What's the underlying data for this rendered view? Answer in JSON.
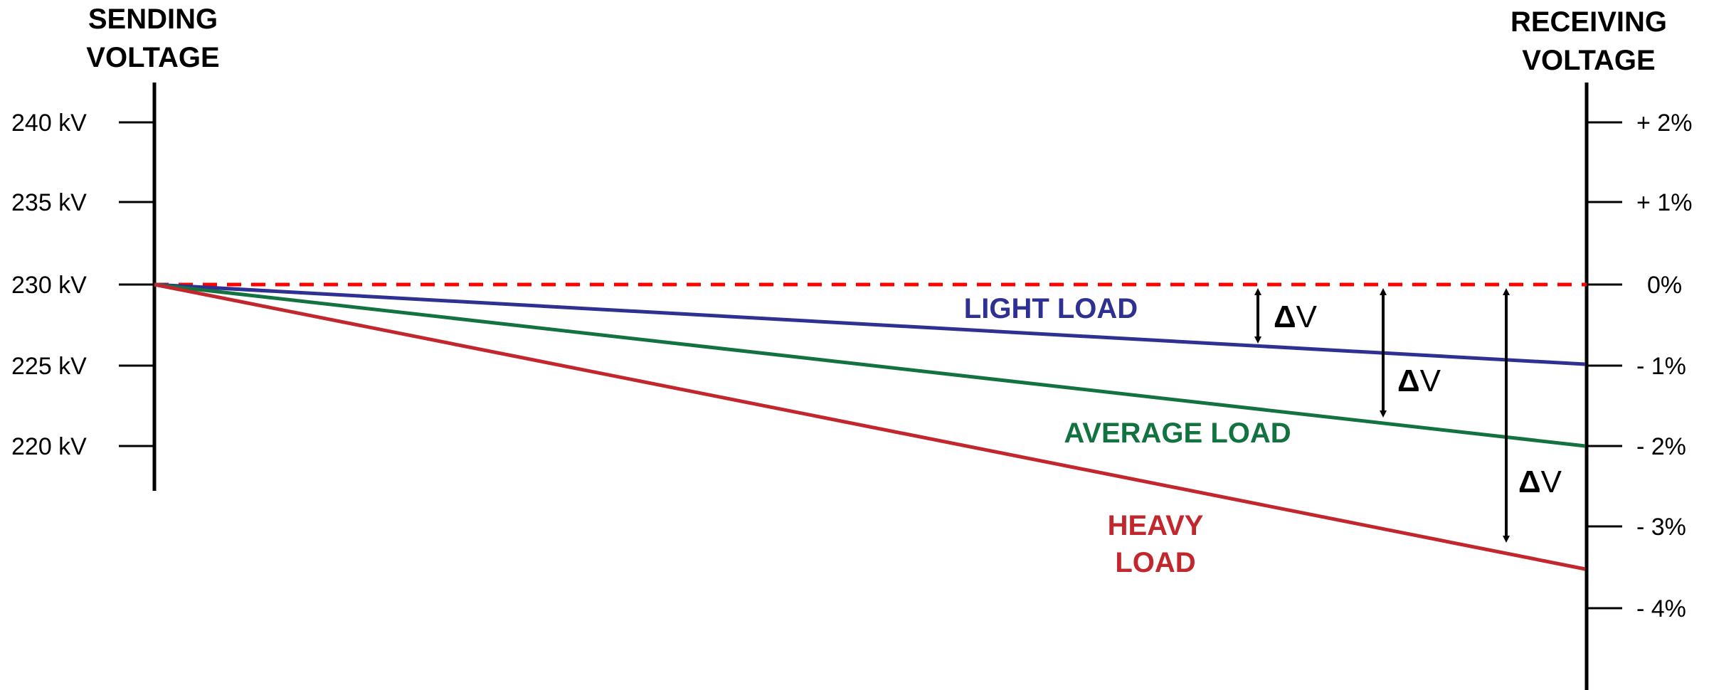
{
  "titles": {
    "sending_line1": "SENDING",
    "sending_line2": "VOLTAGE",
    "receiving_line1": "RECEIVING",
    "receiving_line2": "VOLTAGE"
  },
  "left_ticks": [
    "240 kV",
    "235 kV",
    "230 kV",
    "225 kV",
    "220 kV"
  ],
  "right_ticks": [
    "+ 2%",
    "+ 1%",
    "0%",
    "- 1%",
    "- 2%",
    "- 3%",
    "- 4%"
  ],
  "lines": {
    "light": {
      "label": "LIGHT LOAD",
      "color": "#2e3192",
      "end_percent": -1
    },
    "average": {
      "label": "AVERAGE LOAD",
      "color": "#137340",
      "end_percent": -2
    },
    "heavy": {
      "label_line1": "HEAVY",
      "label_line2": "LOAD",
      "color": "#c1272d",
      "end_percent": -3.5
    },
    "reference": {
      "color": "#ff0000",
      "value_percent": 0
    }
  },
  "delta": {
    "symbol": "Δ",
    "letter": "V"
  }
}
